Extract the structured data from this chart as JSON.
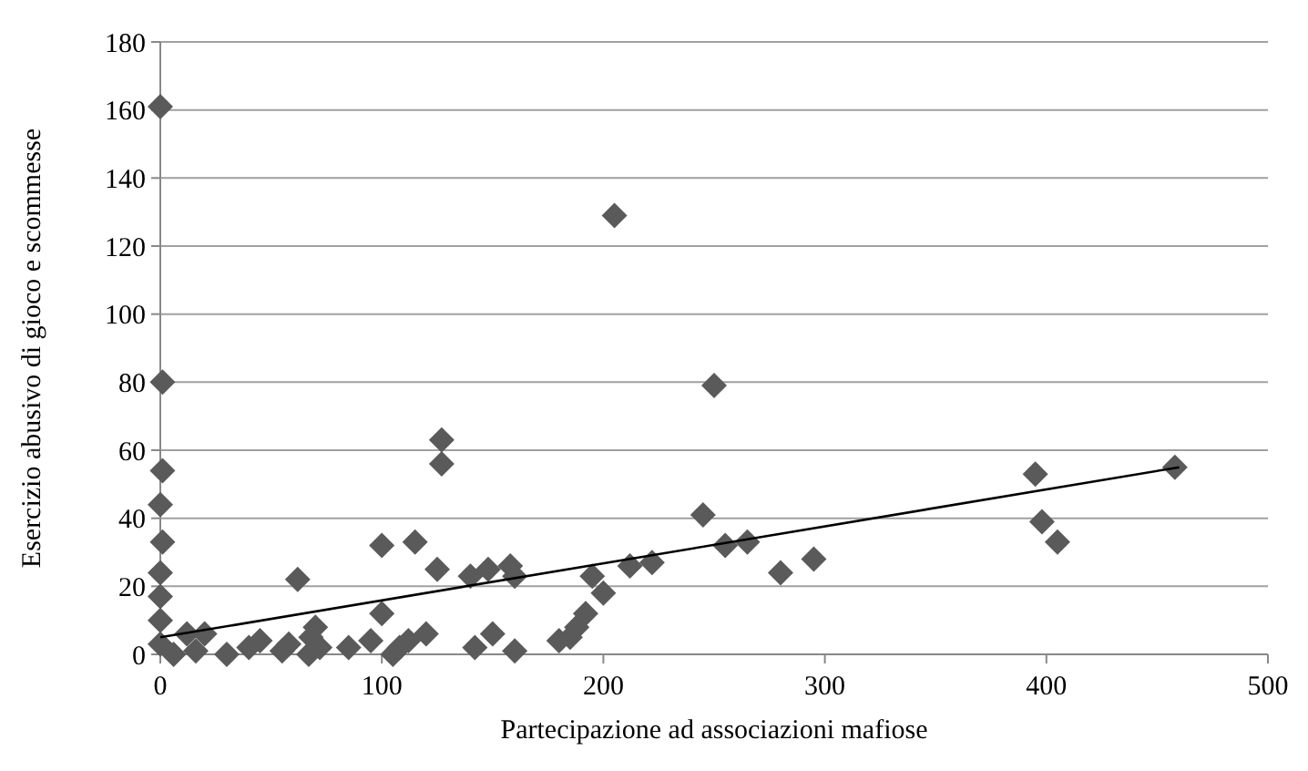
{
  "chart_data": {
    "type": "scatter",
    "xlabel": "Partecipazione ad associazioni mafiose",
    "ylabel": "Esercizio abusivo di gioco e scommesse",
    "xlim": [
      0,
      500
    ],
    "ylim": [
      0,
      180
    ],
    "xticks": [
      0,
      100,
      200,
      300,
      400,
      500
    ],
    "yticks": [
      0,
      20,
      40,
      60,
      80,
      100,
      120,
      140,
      160,
      180
    ],
    "grid": "y",
    "marker": "diamond",
    "series": [
      {
        "type": "scatter",
        "color": "#5a5a5a",
        "x": [
          0,
          1,
          1,
          0,
          1,
          0,
          0,
          0,
          0,
          6,
          12,
          16,
          20,
          30,
          40,
          45,
          55,
          58,
          62,
          68,
          70,
          72,
          67,
          85,
          95,
          100,
          100,
          105,
          108,
          115,
          112,
          120,
          125,
          127,
          127,
          140,
          142,
          148,
          150,
          158,
          160,
          160,
          180,
          185,
          188,
          192,
          195,
          200,
          205,
          212,
          222,
          245,
          250,
          255,
          265,
          280,
          295,
          395,
          398,
          405,
          458
        ],
        "values": [
          161,
          80,
          54,
          44,
          33,
          24,
          17,
          10,
          3,
          0,
          6,
          1,
          6,
          0,
          2,
          4,
          1,
          3,
          22,
          5,
          8,
          2,
          0,
          2,
          4,
          32,
          12,
          0,
          2,
          33,
          4,
          6,
          25,
          63,
          56,
          23,
          2,
          25,
          6,
          26,
          23,
          1,
          4,
          5,
          8,
          12,
          23,
          18,
          129,
          26,
          27,
          41,
          79,
          32,
          33,
          24,
          28,
          53,
          39,
          33,
          55
        ]
      },
      {
        "type": "line",
        "color": "#000000",
        "x": [
          0,
          460
        ],
        "values": [
          5,
          55
        ],
        "marker": "none"
      }
    ]
  }
}
